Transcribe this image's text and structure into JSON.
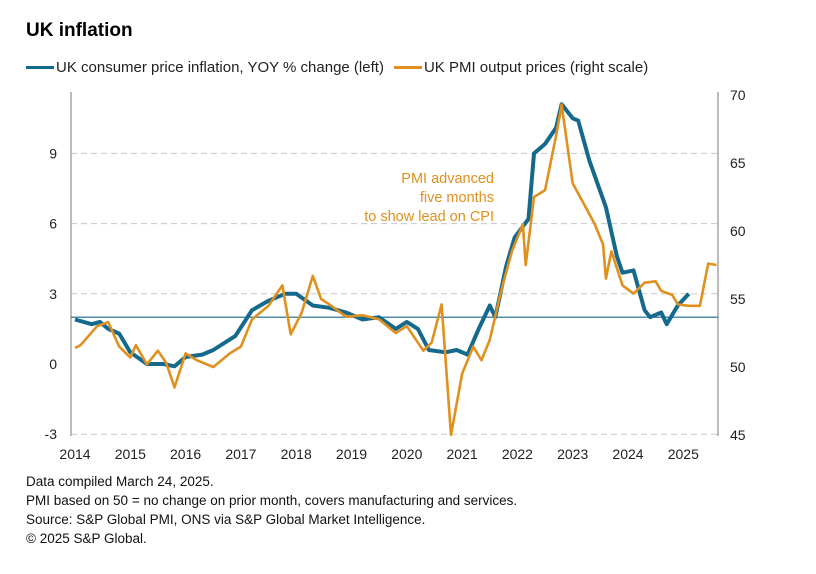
{
  "chart_data": {
    "type": "line",
    "title": "UK inflation",
    "left_axis": {
      "ylim": [
        -3,
        11.5
      ],
      "ticks": [
        -3,
        0,
        3,
        6,
        9
      ]
    },
    "right_axis": {
      "ylim": [
        45,
        70
      ],
      "ticks": [
        45,
        50,
        55,
        60,
        65,
        70
      ]
    },
    "x_ticks": [
      "2014",
      "2015",
      "2016",
      "2017",
      "2018",
      "2019",
      "2020",
      "2021",
      "2022",
      "2023",
      "2024",
      "2025"
    ],
    "grid": "horizontal dashed",
    "legend_placement": "top",
    "reference_line": {
      "axis": "left",
      "value": 2
    },
    "annotation": [
      "PMI advanced",
      "five months",
      "to show lead on CPI"
    ],
    "series": [
      {
        "name": "UK consumer price inflation, YOY % change (left)",
        "axis": "left",
        "color": "#15698c",
        "x": [
          2014.0,
          2014.3,
          2014.45,
          2014.6,
          2014.8,
          2015.0,
          2015.3,
          2015.6,
          2015.8,
          2016.0,
          2016.3,
          2016.5,
          2016.9,
          2017.2,
          2017.5,
          2017.8,
          2018.0,
          2018.3,
          2018.6,
          2018.9,
          2019.2,
          2019.5,
          2019.8,
          2020.0,
          2020.2,
          2020.4,
          2020.7,
          2020.9,
          2021.1,
          2021.3,
          2021.5,
          2021.6,
          2021.8,
          2021.95,
          2022.2,
          2022.3,
          2022.5,
          2022.7,
          2022.8,
          2023.0,
          2023.1,
          2023.3,
          2023.6,
          2023.8,
          2023.9,
          2024.1,
          2024.3,
          2024.4,
          2024.6,
          2024.7,
          2024.9,
          2025.1
        ],
        "y": [
          1.9,
          1.7,
          1.8,
          1.5,
          1.3,
          0.5,
          0.0,
          0.0,
          -0.1,
          0.3,
          0.4,
          0.6,
          1.2,
          2.3,
          2.7,
          3.0,
          3.0,
          2.5,
          2.4,
          2.2,
          1.9,
          2.0,
          1.5,
          1.8,
          1.5,
          0.6,
          0.5,
          0.6,
          0.4,
          1.5,
          2.5,
          2.0,
          4.2,
          5.4,
          6.2,
          9.0,
          9.4,
          10.1,
          11.1,
          10.5,
          10.4,
          8.7,
          6.7,
          4.6,
          3.9,
          4.0,
          2.3,
          2.0,
          2.2,
          1.7,
          2.5,
          3.0
        ]
      },
      {
        "name": "UK PMI output prices (right scale)",
        "axis": "right",
        "color": "#e0901e",
        "x": [
          2014.0,
          2014.1,
          2014.4,
          2014.6,
          2014.8,
          2015.0,
          2015.1,
          2015.3,
          2015.5,
          2015.65,
          2015.8,
          2016.0,
          2016.2,
          2016.5,
          2016.8,
          2017.0,
          2017.2,
          2017.5,
          2017.75,
          2017.9,
          2018.1,
          2018.3,
          2018.45,
          2018.6,
          2018.9,
          2019.2,
          2019.5,
          2019.8,
          2020.0,
          2020.3,
          2020.45,
          2020.63,
          2020.8,
          2021.0,
          2021.2,
          2021.35,
          2021.5,
          2021.7,
          2021.9,
          2022.1,
          2022.15,
          2022.3,
          2022.5,
          2022.7,
          2022.8,
          2023.0,
          2023.2,
          2023.4,
          2023.55,
          2023.6,
          2023.7,
          2023.9,
          2024.1,
          2024.3,
          2024.5,
          2024.6,
          2024.8,
          2024.9,
          2025.1,
          2025.3,
          2025.45,
          2025.6
        ],
        "y": [
          51.4,
          51.6,
          53.0,
          53.3,
          51.5,
          50.7,
          51.6,
          50.2,
          51.2,
          50.3,
          48.5,
          51.0,
          50.5,
          50.0,
          51.0,
          51.5,
          53.5,
          54.5,
          56.0,
          52.4,
          54.0,
          56.7,
          55.0,
          54.6,
          53.7,
          53.8,
          53.5,
          52.5,
          53.0,
          51.2,
          51.8,
          54.6,
          45.0,
          49.5,
          51.5,
          50.5,
          52.0,
          55.5,
          58.5,
          60.5,
          57.5,
          62.5,
          63.0,
          67.0,
          69.3,
          63.5,
          62.0,
          60.5,
          59.0,
          56.5,
          58.5,
          56.0,
          55.4,
          56.2,
          56.3,
          55.6,
          55.3,
          54.6,
          54.5,
          54.5,
          57.6,
          57.5
        ]
      }
    ]
  },
  "footer": [
    "Data compiled March 24, 2025.",
    "PMI based on 50 = no change on prior month, covers manufacturing and services.",
    "Source: S&P Global PMI,  ONS via S&P Global Market Intelligence.",
    "© 2025 S&P Global."
  ]
}
